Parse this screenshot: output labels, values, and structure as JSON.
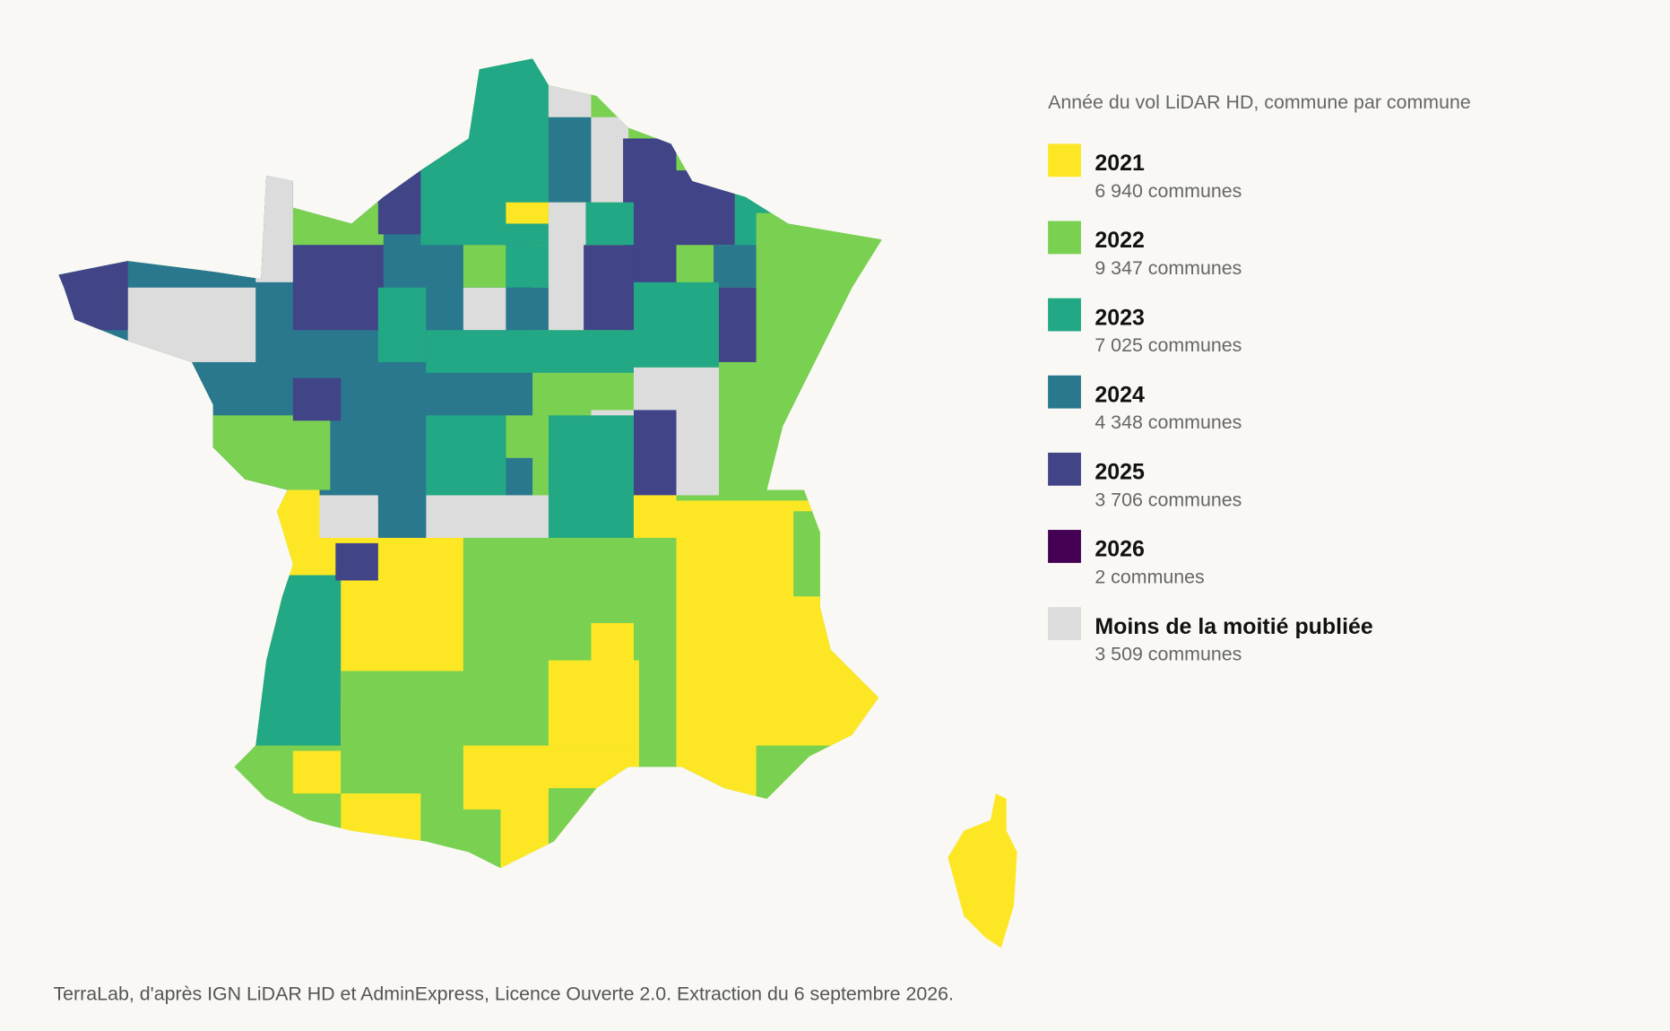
{
  "legend": {
    "title": "Année du vol LiDAR HD, commune par commune",
    "items": [
      {
        "label": "2021",
        "count": "6 940 communes",
        "color": "#fde725"
      },
      {
        "label": "2022",
        "count": "9 347 communes",
        "color": "#7ad151"
      },
      {
        "label": "2023",
        "count": "7 025 communes",
        "color": "#22a884"
      },
      {
        "label": "2024",
        "count": "4 348 communes",
        "color": "#2a788e"
      },
      {
        "label": "2025",
        "count": "3 706 communes",
        "color": "#414487"
      },
      {
        "label": "2026",
        "count": "2 communes",
        "color": "#440154"
      },
      {
        "label": "Moins de la moitié publiée",
        "count": "3 509 communes",
        "color": "#dcdcdc"
      }
    ]
  },
  "source": "TerraLab, d'après IGN LiDAR HD et AdminExpress, Licence Ouverte 2.0. Extraction du 6 septembre 2026."
}
